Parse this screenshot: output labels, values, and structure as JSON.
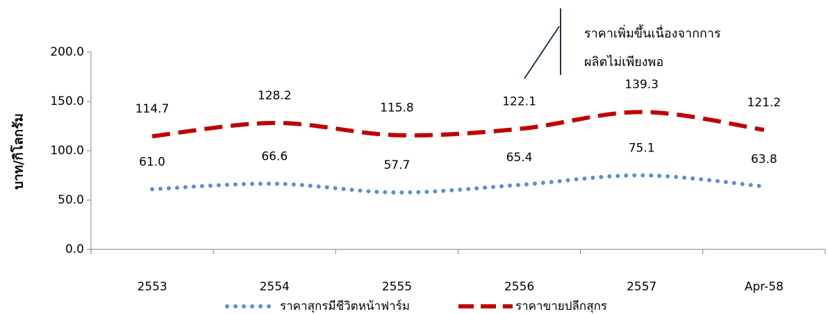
{
  "chart_data": {
    "type": "line",
    "categories": [
      "2553",
      "2554",
      "2555",
      "2556",
      "2557",
      "Apr-58"
    ],
    "series": [
      {
        "name": "ราคาสุกรมีชีวิตหน้าฟาร์ม",
        "values": [
          61.0,
          66.6,
          57.7,
          65.4,
          75.1,
          63.8
        ],
        "labels": [
          "61.0",
          "66.6",
          "57.7",
          "65.4",
          "75.1",
          "63.8"
        ],
        "color": "#5b8fd6",
        "style": "dotted"
      },
      {
        "name": "ราคาขายปลีกสุกร",
        "values": [
          114.7,
          128.2,
          115.8,
          122.1,
          139.3,
          121.2
        ],
        "labels": [
          "114.7",
          "128.2",
          "115.8",
          "122.1",
          "139.3",
          "121.2"
        ],
        "color": "#c00000",
        "style": "dashed"
      }
    ],
    "ylabel": "บาท/กิโลกรัม",
    "xlabel": "",
    "ylim": [
      0,
      200
    ],
    "yticks": [
      "0.0",
      "50.0",
      "100.0",
      "150.0",
      "200.0"
    ],
    "grid": false,
    "legend_position": "bottom",
    "annotation": {
      "line1": "ราคาเพิ่มขึ้นเนื่องจากการ",
      "line2": "ผลิตไม่เพียงพอ"
    }
  }
}
